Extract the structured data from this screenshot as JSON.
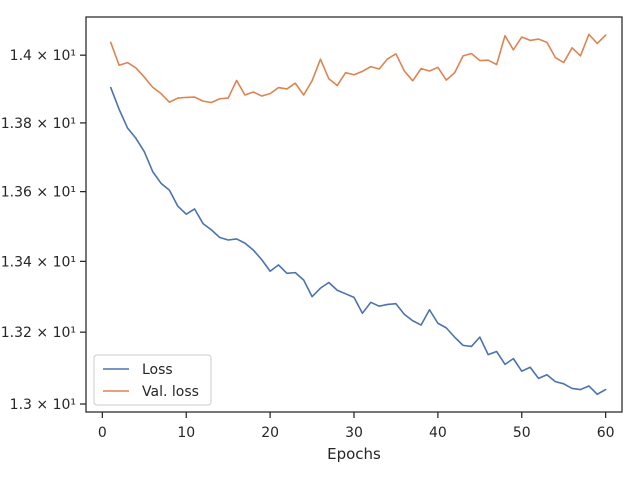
{
  "chart_data": {
    "type": "line",
    "title": "",
    "xlabel": "Epochs",
    "ylabel": "",
    "xlim": [
      -1.95,
      61.95
    ],
    "ylim": [
      12.978,
      14.114
    ],
    "y_scale": "log",
    "grid": false,
    "legend_position": "lower-left",
    "x_ticks": [
      0,
      10,
      20,
      30,
      40,
      50,
      60
    ],
    "x_tick_labels": [
      "0",
      "10",
      "20",
      "30",
      "40",
      "50",
      "60"
    ],
    "y_ticks": [
      13.0,
      13.2,
      13.4,
      13.6,
      13.8,
      14.0
    ],
    "y_tick_labels": [
      "1.3 × 10¹",
      "1.32 × 10¹",
      "1.34 × 10¹",
      "1.36 × 10¹",
      "1.38 × 10¹",
      "1.4 × 10¹"
    ],
    "x": [
      1,
      2,
      3,
      4,
      5,
      6,
      7,
      8,
      9,
      10,
      11,
      12,
      13,
      14,
      15,
      16,
      17,
      18,
      19,
      20,
      21,
      22,
      23,
      24,
      25,
      26,
      27,
      28,
      29,
      30,
      31,
      32,
      33,
      34,
      35,
      36,
      37,
      38,
      39,
      40,
      41,
      42,
      43,
      44,
      45,
      46,
      47,
      48,
      49,
      50,
      51,
      52,
      53,
      54,
      55,
      56,
      57,
      58,
      59,
      60
    ],
    "series": [
      {
        "name": "Loss",
        "color": "#4c72b0",
        "values": [
          13.904,
          13.84,
          13.785,
          13.755,
          13.716,
          13.658,
          13.624,
          13.604,
          13.558,
          13.535,
          13.55,
          13.508,
          13.49,
          13.468,
          13.461,
          13.464,
          13.452,
          13.432,
          13.405,
          13.372,
          13.39,
          13.366,
          13.368,
          13.347,
          13.3,
          13.324,
          13.34,
          13.318,
          13.308,
          13.298,
          13.253,
          13.284,
          13.273,
          13.278,
          13.28,
          13.25,
          13.232,
          13.22,
          13.263,
          13.225,
          13.212,
          13.186,
          13.163,
          13.16,
          13.186,
          13.137,
          13.146,
          13.11,
          13.126,
          13.091,
          13.102,
          13.071,
          13.081,
          13.062,
          13.056,
          13.043,
          13.04,
          13.05,
          13.027,
          13.04
        ]
      },
      {
        "name": "Val. loss",
        "color": "#dd8452",
        "values": [
          14.038,
          13.97,
          13.978,
          13.962,
          13.935,
          13.905,
          13.886,
          13.861,
          13.873,
          13.875,
          13.876,
          13.864,
          13.86,
          13.871,
          13.873,
          13.925,
          13.882,
          13.891,
          13.879,
          13.886,
          13.904,
          13.9,
          13.917,
          13.882,
          13.924,
          13.988,
          13.93,
          13.91,
          13.948,
          13.942,
          13.952,
          13.966,
          13.959,
          13.989,
          14.004,
          13.953,
          13.924,
          13.96,
          13.953,
          13.964,
          13.926,
          13.948,
          13.998,
          14.005,
          13.984,
          13.985,
          13.972,
          14.058,
          14.016,
          14.054,
          14.044,
          14.048,
          14.038,
          13.993,
          13.978,
          14.022,
          13.998,
          14.062,
          14.035,
          14.06
        ]
      }
    ]
  }
}
